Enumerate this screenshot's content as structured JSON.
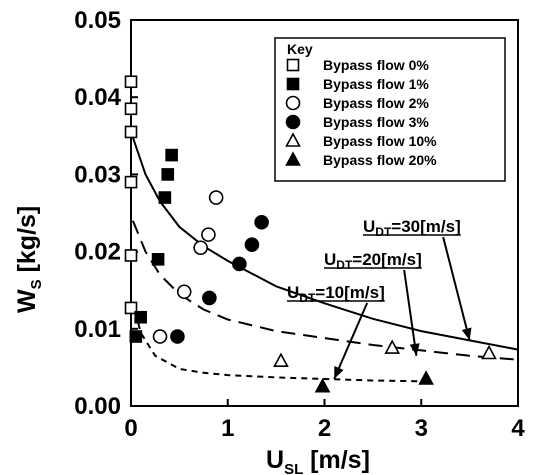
{
  "chart_data": {
    "type": "scatter",
    "xlabel": {
      "main": "U",
      "sub": "SL",
      "unit": " [m/s]"
    },
    "ylabel": {
      "main": "W",
      "sub": "S",
      "unit": " [kg/s]"
    },
    "xlim": [
      0,
      4
    ],
    "ylim": [
      0,
      0.05
    ],
    "x_ticks": [
      0,
      1,
      2,
      3,
      4
    ],
    "y_ticks": [
      0.0,
      0.01,
      0.02,
      0.03,
      0.04,
      0.05
    ],
    "x_tick_labels": [
      "0",
      "1",
      "2",
      "3",
      "4"
    ],
    "y_tick_labels": [
      "0.00",
      "0.01",
      "0.02",
      "0.03",
      "0.04",
      "0.05"
    ],
    "grid": false,
    "legend": {
      "title": "Key",
      "placement": "top-right"
    },
    "series": [
      {
        "name": "Bypass flow 0%",
        "marker": "square-open",
        "points": [
          [
            0,
            0.042
          ],
          [
            0,
            0.0385
          ],
          [
            0,
            0.0355
          ],
          [
            0,
            0.029
          ],
          [
            0,
            0.0195
          ],
          [
            0,
            0.0127
          ]
        ]
      },
      {
        "name": "Bypass flow 1%",
        "marker": "square-filled",
        "points": [
          [
            0.05,
            0.009
          ],
          [
            0.1,
            0.0115
          ],
          [
            0.28,
            0.019
          ],
          [
            0.35,
            0.027
          ],
          [
            0.42,
            0.0325
          ],
          [
            0.38,
            0.03
          ]
        ]
      },
      {
        "name": "Bypass flow 2%",
        "marker": "circle-open",
        "points": [
          [
            0.3,
            0.009
          ],
          [
            0.55,
            0.0148
          ],
          [
            0.72,
            0.0205
          ],
          [
            0.8,
            0.0222
          ],
          [
            0.88,
            0.027
          ]
        ]
      },
      {
        "name": "Bypass flow 3%",
        "marker": "circle-filled",
        "points": [
          [
            0.48,
            0.009
          ],
          [
            0.81,
            0.014
          ],
          [
            1.12,
            0.0184
          ],
          [
            1.25,
            0.0209
          ],
          [
            1.35,
            0.0238
          ]
        ]
      },
      {
        "name": "Bypass flow 10%",
        "marker": "triangle-open",
        "points": [
          [
            1.55,
            0.0058
          ],
          [
            2.7,
            0.0075
          ],
          [
            3.7,
            0.0068
          ]
        ]
      },
      {
        "name": "Bypass flow 20%",
        "marker": "triangle-filled",
        "points": [
          [
            1.98,
            0.0025
          ],
          [
            3.05,
            0.0035
          ]
        ]
      }
    ],
    "curves": [
      {
        "label": "=30[m/s]",
        "style": "solid",
        "points": [
          [
            0,
            0.0355
          ],
          [
            0.15,
            0.03
          ],
          [
            0.3,
            0.0265
          ],
          [
            0.5,
            0.0232
          ],
          [
            0.75,
            0.0207
          ],
          [
            1.0,
            0.0188
          ],
          [
            1.5,
            0.0155
          ],
          [
            2.0,
            0.0133
          ],
          [
            2.5,
            0.0113
          ],
          [
            3.0,
            0.0097
          ],
          [
            3.5,
            0.0085
          ],
          [
            4.0,
            0.0073
          ]
        ]
      },
      {
        "label": "=20[m/s]",
        "style": "dashed",
        "points": [
          [
            0.02,
            0.024
          ],
          [
            0.15,
            0.02
          ],
          [
            0.3,
            0.017
          ],
          [
            0.5,
            0.0145
          ],
          [
            0.75,
            0.0125
          ],
          [
            1.0,
            0.0112
          ],
          [
            1.5,
            0.0097
          ],
          [
            2.0,
            0.0088
          ],
          [
            2.5,
            0.0079
          ],
          [
            3.0,
            0.0072
          ],
          [
            3.5,
            0.0065
          ],
          [
            4.0,
            0.006
          ]
        ]
      },
      {
        "label": "=10[m/s]",
        "style": "short-dashed",
        "points": [
          [
            0.02,
            0.0135
          ],
          [
            0.1,
            0.0095
          ],
          [
            0.25,
            0.0065
          ],
          [
            0.5,
            0.0048
          ],
          [
            0.75,
            0.0043
          ],
          [
            1.0,
            0.004
          ],
          [
            1.5,
            0.0037
          ],
          [
            2.0,
            0.0035
          ],
          [
            2.5,
            0.0033
          ],
          [
            3.0,
            0.0032
          ]
        ]
      }
    ],
    "annotations": [
      {
        "main": "U",
        "sub": "DT",
        "text": "=30[m/s]",
        "arrow_to": [
          3.5,
          0.0085
        ]
      },
      {
        "main": "U",
        "sub": "DT",
        "text": "=20[m/s]",
        "arrow_to": [
          2.95,
          0.0065
        ]
      },
      {
        "main": "U",
        "sub": "DT",
        "text": "=10[m/s]",
        "arrow_to": [
          2.1,
          0.0035
        ]
      }
    ]
  }
}
